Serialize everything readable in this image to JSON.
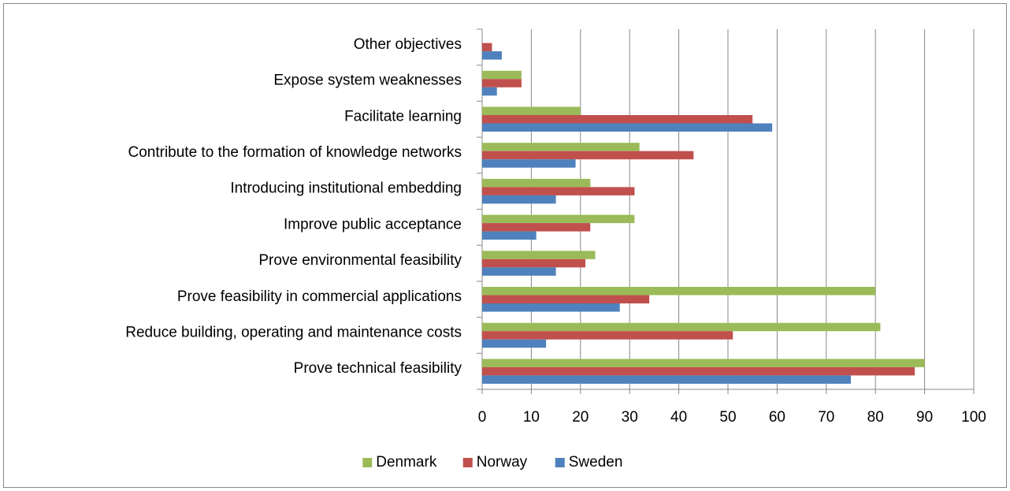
{
  "chart_data": {
    "type": "barh",
    "categories": [
      "Other objectives",
      "Expose system weaknesses",
      "Facilitate learning",
      "Contribute to the formation of knowledge networks",
      "Introducing institutional embedding",
      "Improve public acceptance",
      "Prove environmental feasibility",
      "Prove feasibility in commercial applications",
      "Reduce building, operating and maintenance costs",
      "Prove technical feasibility"
    ],
    "series": [
      {
        "name": "Denmark",
        "color": "#9bbb59",
        "values": [
          0,
          8,
          20,
          32,
          22,
          31,
          23,
          80,
          81,
          90
        ]
      },
      {
        "name": "Norway",
        "color": "#c0504d",
        "values": [
          2,
          8,
          55,
          43,
          31,
          22,
          21,
          34,
          51,
          88
        ]
      },
      {
        "name": "Sweden",
        "color": "#4f81bd",
        "values": [
          4,
          3,
          59,
          19,
          15,
          11,
          15,
          28,
          13,
          75
        ]
      }
    ],
    "xlim": [
      0,
      100
    ],
    "xticks": [
      0,
      10,
      20,
      30,
      40,
      50,
      60,
      70,
      80,
      90,
      100
    ],
    "grid": true,
    "legend": "bottom"
  }
}
